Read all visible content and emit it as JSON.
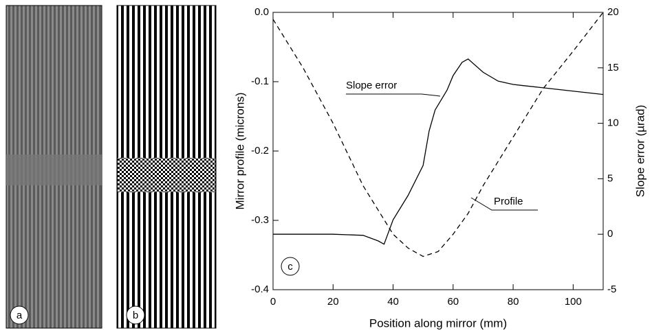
{
  "panel_labels": [
    "a",
    "b"
  ],
  "chart_data": {
    "type": "line",
    "xlabel": "Position along mirror (mm)",
    "ylabel": "Mirror profile (microns)",
    "y2label": "Slope error (µrad)",
    "xlim": [
      0,
      110
    ],
    "xticks": [
      0,
      20,
      40,
      60,
      80,
      100
    ],
    "ylim": [
      -0.4,
      0
    ],
    "yticks": [
      -0.4,
      -0.3,
      -0.2,
      -0.1,
      {
        "value": 0,
        "label": "0.0"
      }
    ],
    "y2lim": [
      -5,
      20
    ],
    "y2ticks": [
      -5,
      0,
      5,
      10,
      15,
      20
    ],
    "annotations": [
      "c",
      "Slope error",
      "Profile"
    ],
    "series": [
      {
        "name": "Profile",
        "color": "#000000",
        "dash": true,
        "x": [
          0,
          10,
          20,
          30,
          40,
          45,
          50,
          55,
          60,
          65,
          70,
          80,
          90,
          100,
          110
        ],
        "values": [
          -0.01,
          -0.08,
          -0.16,
          -0.25,
          -0.32,
          -0.34,
          -0.352,
          -0.345,
          -0.32,
          -0.29,
          -0.25,
          -0.18,
          -0.11,
          -0.056,
          0
        ]
      },
      {
        "name": "Slope error",
        "color": "#000000",
        "axis": "y2",
        "x": [
          0,
          10,
          20,
          30,
          35,
          37,
          40,
          45,
          50,
          52,
          54,
          56,
          58,
          60,
          63,
          65,
          70,
          75,
          80,
          90,
          100,
          110
        ],
        "values": [
          0,
          0,
          0,
          -0.1,
          -0.6,
          -0.9,
          1.3,
          3.5,
          6.2,
          9.3,
          11.2,
          12.1,
          13,
          14.3,
          15.5,
          15.8,
          14.6,
          13.8,
          13.5,
          13.2,
          12.9,
          12.6
        ]
      }
    ]
  }
}
